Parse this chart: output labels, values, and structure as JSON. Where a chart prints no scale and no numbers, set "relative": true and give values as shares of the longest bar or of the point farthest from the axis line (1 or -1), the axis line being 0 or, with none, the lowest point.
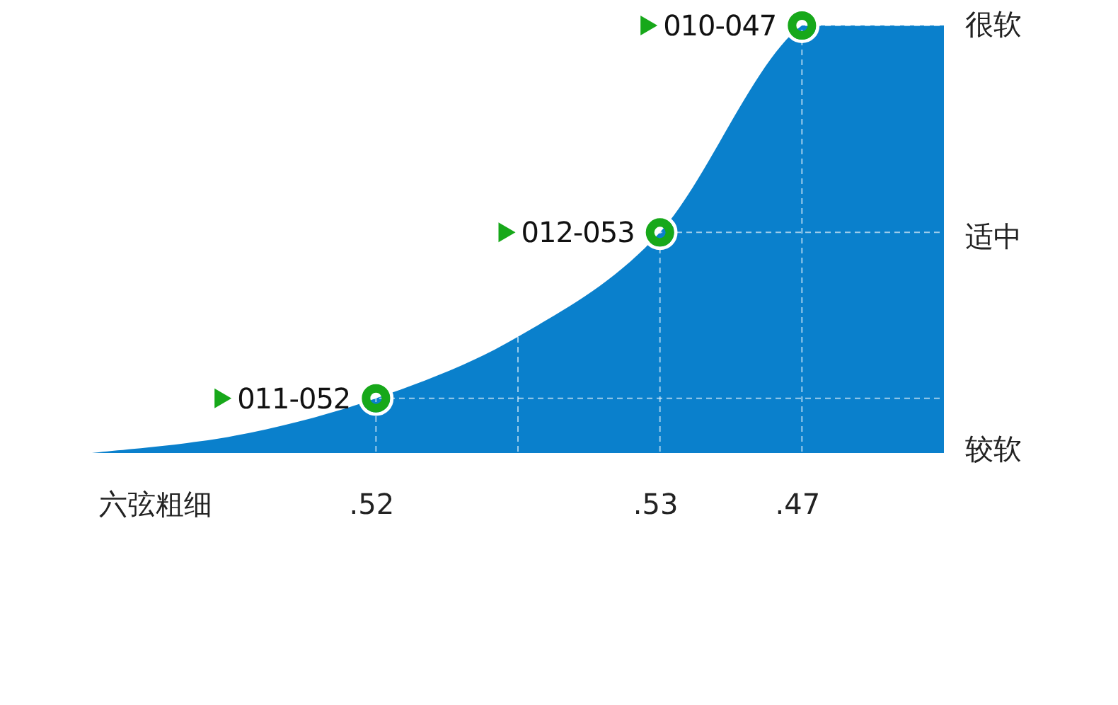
{
  "chart_data": {
    "type": "area",
    "relative": true,
    "xlabel": "六弦粗细",
    "categories": [
      null,
      null,
      ".52",
      null,
      ".53",
      ".47",
      null
    ],
    "grid": true,
    "series": [
      {
        "color": "#0a80cc",
        "values": [
          0,
          0.04,
          0.128,
          0.272,
          0.516,
          1,
          1
        ]
      },
      {
        "type": "scatter",
        "marker": "circle",
        "color": "#17a81a",
        "x": [
          ".52",
          ".53",
          ".47"
        ],
        "values": [
          0.128,
          0.516,
          1
        ]
      }
    ],
    "annotations": [
      {
        "text": "011-052",
        "x": ".52",
        "y": 0.128
      },
      {
        "text": "012-053",
        "x": ".53",
        "y": 0.516
      },
      {
        "text": "010-047",
        "x": ".47",
        "y": 1
      },
      "较软",
      "适中",
      "很软"
    ]
  }
}
